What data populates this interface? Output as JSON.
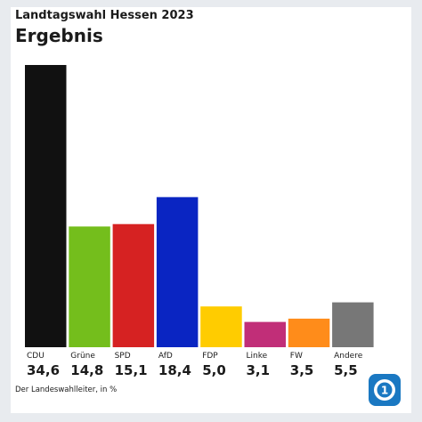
{
  "header": {
    "supertitle": "Landtagswahl Hessen 2023",
    "title": "Ergebnis"
  },
  "footer": {
    "source": "Der Landeswahlleiter, in %"
  },
  "logo": {
    "icon": "ard-logo-icon",
    "color": "#1a78c2"
  },
  "chart_data": {
    "type": "bar",
    "categories": [
      "CDU",
      "Grüne",
      "SPD",
      "AfD",
      "FDP",
      "Linke",
      "FW",
      "Andere"
    ],
    "values": [
      34.6,
      14.8,
      15.1,
      18.4,
      5.0,
      3.1,
      3.5,
      5.5
    ],
    "value_labels": [
      "34,6",
      "14,8",
      "15,1",
      "18,4",
      "5,0",
      "3,1",
      "3,5",
      "5,5"
    ],
    "colors": [
      "#111111",
      "#74be1c",
      "#d62222",
      "#0a25c2",
      "#ffcc00",
      "#c12e78",
      "#ff8c1a",
      "#777777"
    ],
    "title": "Ergebnis",
    "ylim": [
      0,
      34.6
    ],
    "grid": false,
    "legend": "none"
  }
}
